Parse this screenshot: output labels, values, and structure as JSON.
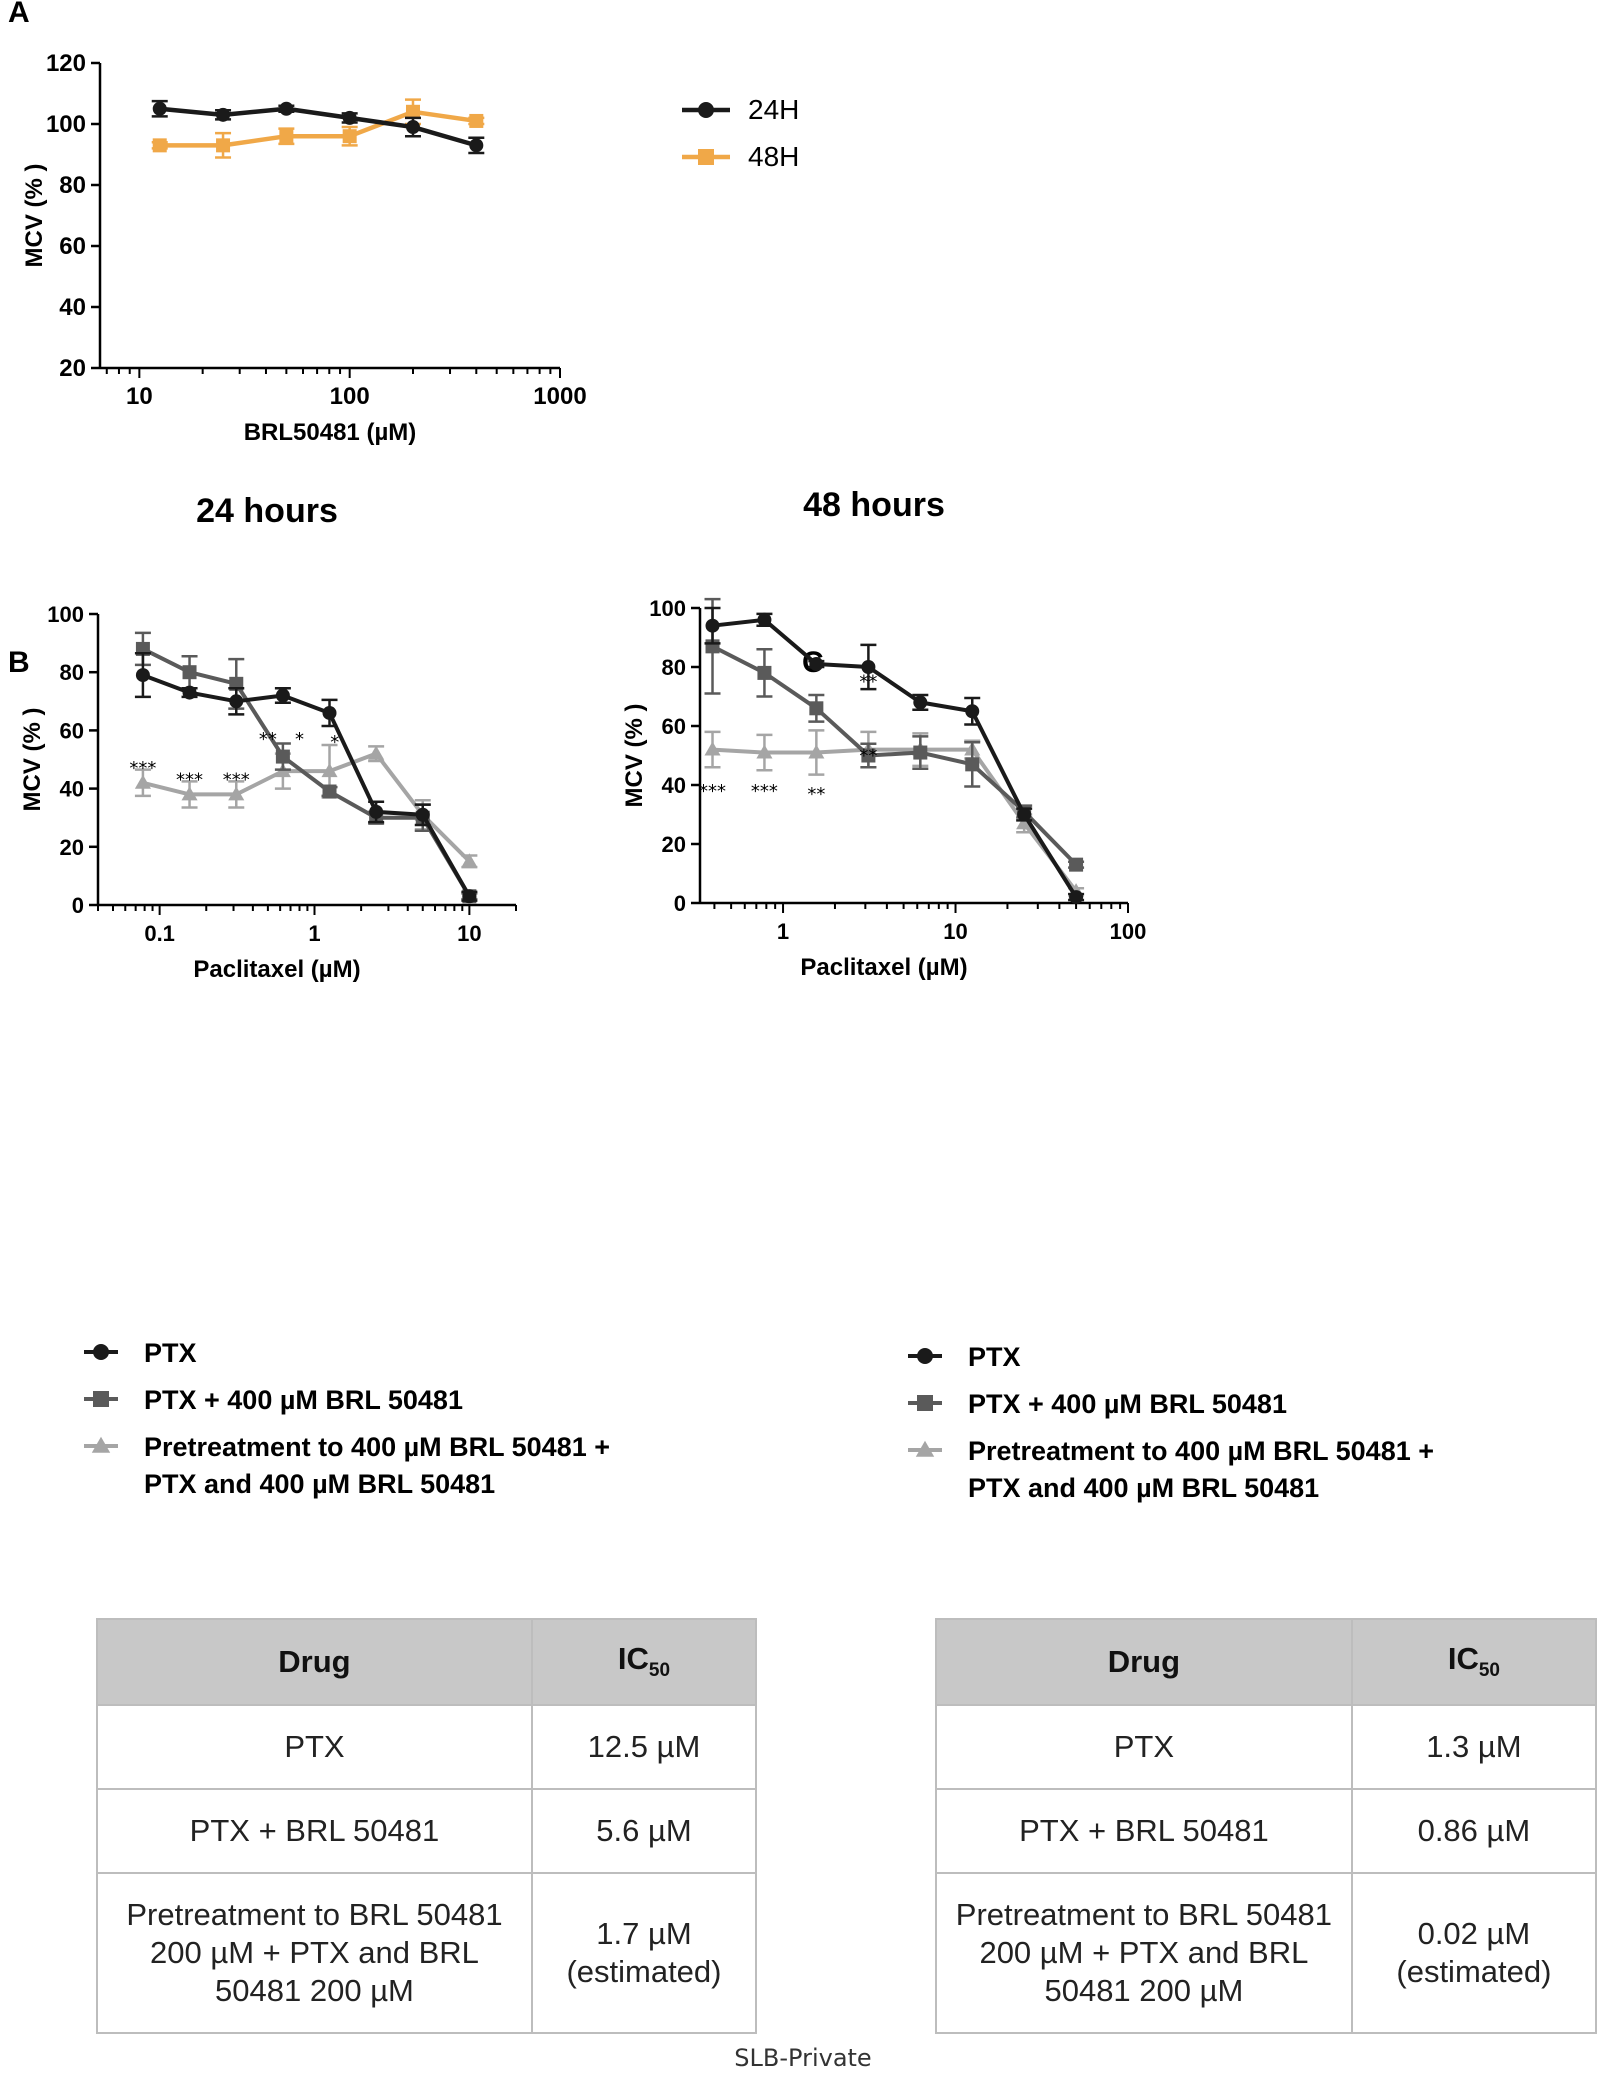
{
  "footer": "SLB-Private",
  "colors": {
    "black": "#1a1a1a",
    "dark_gray": "#5a5a5a",
    "light_gray": "#a5a5a5",
    "orange": "#f0a848"
  },
  "legend_BC": [
    {
      "marker": "circle",
      "color": "#1a1a1a",
      "lines": [
        "PTX"
      ]
    },
    {
      "marker": "square",
      "color": "#5a5a5a",
      "lines": [
        "PTX + 400 µM BRL 50481"
      ]
    },
    {
      "marker": "triangle",
      "color": "#a5a5a5",
      "lines": [
        "Pretreatment to 400 µM BRL 50481 +",
        "PTX and 400 µM BRL 50481"
      ]
    }
  ],
  "chart_data": [
    {
      "panel": "A",
      "type": "line",
      "title": "",
      "xlabel": "BRL50481 (µM)",
      "ylabel": "MCV (% )",
      "xscale": "log",
      "xlim": [
        6.5,
        1000
      ],
      "ylim": [
        20,
        120
      ],
      "xticks": [
        10,
        100,
        1000
      ],
      "yticks": [
        20,
        40,
        60,
        80,
        100,
        120
      ],
      "legend_position": "top-right",
      "series": [
        {
          "name": "24H",
          "marker": "circle",
          "color": "#1a1a1a",
          "x": [
            12.5,
            25,
            50,
            100,
            200,
            400
          ],
          "y": [
            105,
            103,
            105,
            102,
            99,
            93
          ],
          "err": [
            2.5,
            1.5,
            1.0,
            1.5,
            3.0,
            2.5
          ]
        },
        {
          "name": "48H",
          "marker": "square",
          "color": "#f0a848",
          "x": [
            12.5,
            25,
            50,
            100,
            200,
            400
          ],
          "y": [
            93,
            93,
            96,
            96,
            104,
            101
          ],
          "err": [
            1.0,
            4.0,
            2.5,
            3.0,
            4.0,
            1.0
          ]
        }
      ],
      "annotations": []
    },
    {
      "panel": "B",
      "type": "line",
      "title": "24 hours",
      "xlabel": "Paclitaxel (µM)",
      "ylabel": "MCV (% )",
      "xscale": "log",
      "xlim": [
        0.04,
        20
      ],
      "ylim": [
        0,
        100
      ],
      "xticks": [
        0.1,
        1,
        10
      ],
      "yticks": [
        0,
        20,
        40,
        60,
        80,
        100
      ],
      "series": [
        {
          "name": "PTX",
          "marker": "circle",
          "color": "#1a1a1a",
          "x": [
            0.078,
            0.156,
            0.3125,
            0.625,
            1.25,
            2.5,
            5,
            10
          ],
          "y": [
            79,
            73,
            70,
            72,
            66,
            32,
            31,
            3
          ],
          "err": [
            7.5,
            1.5,
            4.5,
            2.5,
            4.5,
            3.5,
            3.5,
            1.5
          ]
        },
        {
          "name": "PTX + 400 µM BRL 50481",
          "marker": "square",
          "color": "#5a5a5a",
          "x": [
            0.078,
            0.156,
            0.3125,
            0.625,
            1.25,
            2.5,
            5,
            10
          ],
          "y": [
            88,
            80,
            76,
            51,
            39,
            30,
            30,
            3
          ],
          "err": [
            5.5,
            5.5,
            8.5,
            4.5,
            1.5,
            2.0,
            4.5,
            1.0
          ]
        },
        {
          "name": "Pretreatment to 400 µM BRL 50481 + PTX and 400 µM BRL 50481",
          "marker": "triangle",
          "color": "#a5a5a5",
          "x": [
            0.078,
            0.156,
            0.3125,
            0.625,
            1.25,
            2.5,
            5,
            10
          ],
          "y": [
            42,
            38,
            38,
            46,
            46,
            52,
            31,
            15
          ],
          "err": [
            4.5,
            4.5,
            4.5,
            6.0,
            9.0,
            2.5,
            5.0,
            2.0
          ]
        }
      ],
      "annotations": [
        {
          "text": "***",
          "x": 0.078,
          "y": 45
        },
        {
          "text": "***",
          "x": 0.156,
          "y": 41
        },
        {
          "text": "***",
          "x": 0.3125,
          "y": 41
        },
        {
          "text": "**",
          "x": 0.5,
          "y": 55
        },
        {
          "text": "*",
          "x": 0.8,
          "y": 55
        },
        {
          "text": "*",
          "x": 1.35,
          "y": 54
        }
      ]
    },
    {
      "panel": "C",
      "type": "line",
      "title": "48 hours",
      "xlabel": "Paclitaxel (µM)",
      "ylabel": "MCV (% )",
      "xscale": "log",
      "xlim": [
        0.33,
        100
      ],
      "ylim": [
        0,
        100
      ],
      "xticks": [
        1,
        10,
        100
      ],
      "yticks": [
        0,
        20,
        40,
        60,
        80,
        100
      ],
      "series": [
        {
          "name": "PTX",
          "marker": "circle",
          "color": "#1a1a1a",
          "x": [
            0.39,
            0.78,
            1.56,
            3.125,
            6.25,
            12.5,
            25,
            50
          ],
          "y": [
            94,
            96,
            81,
            80,
            68,
            65,
            30,
            2
          ],
          "err": [
            6.0,
            2.0,
            1.0,
            7.5,
            2.5,
            4.5,
            2.0,
            1.0
          ]
        },
        {
          "name": "PTX + 400 µM BRL 50481",
          "marker": "square",
          "color": "#5a5a5a",
          "x": [
            0.39,
            0.78,
            1.56,
            3.125,
            6.25,
            12.5,
            25,
            50
          ],
          "y": [
            87,
            78,
            66,
            50,
            51,
            47,
            31,
            13
          ],
          "err": [
            16.0,
            8.0,
            4.5,
            4.0,
            5.5,
            7.5,
            2.0,
            1.0
          ]
        },
        {
          "name": "Pretreatment to 400 µM BRL 50481 + PTX and 400 µM BRL 50481",
          "marker": "triangle",
          "color": "#a5a5a5",
          "x": [
            0.39,
            0.78,
            1.56,
            3.125,
            6.25,
            12.5,
            25,
            50
          ],
          "y": [
            52,
            51,
            51,
            52,
            52,
            52,
            27,
            4
          ],
          "err": [
            6.0,
            6.0,
            7.5,
            6.0,
            5.5,
            3.0,
            3.0,
            1.0
          ]
        }
      ],
      "annotations": [
        {
          "text": "***",
          "x": 0.39,
          "y": 36
        },
        {
          "text": "***",
          "x": 0.78,
          "y": 36
        },
        {
          "text": "**",
          "x": 1.56,
          "y": 35
        },
        {
          "text": "**",
          "x": 3.125,
          "y": 73
        },
        {
          "text": "**",
          "x": 3.125,
          "y": 48
        }
      ]
    },
    {
      "panel": "B-table",
      "type": "table",
      "columns": [
        "Drug",
        "IC",
        "50"
      ],
      "rows": [
        [
          "PTX",
          "12.5 µM"
        ],
        [
          "PTX + BRL 50481",
          "5.6 µM"
        ],
        [
          "Pretreatment to BRL 50481 200 µM + PTX and BRL 50481 200 µM",
          "1.7 µM (estimated)"
        ]
      ],
      "rows_display": [
        [
          [
            "PTX"
          ],
          [
            "12.5 µM"
          ]
        ],
        [
          [
            "PTX + BRL 50481"
          ],
          [
            "5.6 µM"
          ]
        ],
        [
          [
            "Pretreatment to BRL 50481",
            "200 µM + PTX and BRL",
            "50481 200 µM"
          ],
          [
            "1.7 µM",
            "(estimated)"
          ]
        ]
      ]
    },
    {
      "panel": "C-table",
      "type": "table",
      "columns": [
        "Drug",
        "IC",
        "50"
      ],
      "rows": [
        [
          "PTX",
          "1.3 µM"
        ],
        [
          "PTX + BRL 50481",
          "0.86 µM"
        ],
        [
          "Pretreatment to BRL 50481 200 µM + PTX and BRL 50481 200 µM",
          "0.02 µM (estimated)"
        ]
      ],
      "rows_display": [
        [
          [
            "PTX"
          ],
          [
            "1.3 µM"
          ]
        ],
        [
          [
            "PTX + BRL 50481"
          ],
          [
            "0.86 µM"
          ]
        ],
        [
          [
            "Pretreatment to BRL 50481",
            "200 µM + PTX and BRL",
            "50481 200 µM"
          ],
          [
            "0.02 µM",
            "(estimated)"
          ]
        ]
      ]
    }
  ]
}
